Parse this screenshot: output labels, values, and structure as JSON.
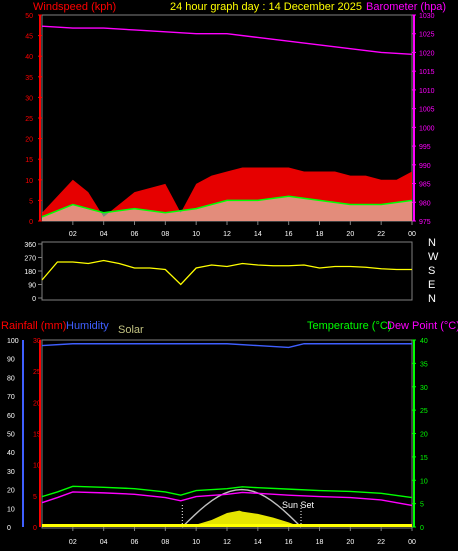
{
  "header": {
    "title": "24 hour graph day : 14 December 2025",
    "left_label": "Windspeed (kph)",
    "right_label": "Barometer (hpa)"
  },
  "colors": {
    "windspeed": "#ff0000",
    "barometer": "#ff00ff",
    "gust": "#ff0000",
    "avg_wind": "#00ff00",
    "direction": "#ffff00",
    "humidity": "#3f5fff",
    "temperature": "#00ff00",
    "dewpoint": "#ff00ff",
    "solar": "#ffff00",
    "solar_curve": "#c0c0c0",
    "title": "#ffff00",
    "axis": "#808080"
  },
  "chart_data": [
    {
      "type": "line",
      "panel": "wind-barometer",
      "x_ticks": [
        "02",
        "04",
        "06",
        "08",
        "10",
        "12",
        "14",
        "16",
        "18",
        "20",
        "22",
        "00"
      ],
      "left_axis": {
        "label": "Windspeed (kph)",
        "ticks": [
          0,
          5,
          10,
          15,
          20,
          25,
          30,
          35,
          40,
          45,
          50
        ],
        "range": [
          0,
          50
        ]
      },
      "right_axis": {
        "label": "Barometer (hpa)",
        "ticks": [
          975,
          980,
          985,
          990,
          995,
          1000,
          1005,
          1010,
          1015,
          1020,
          1025,
          1030
        ],
        "range": [
          975,
          1030
        ]
      },
      "series": [
        {
          "name": "Barometer (hpa)",
          "axis": "right",
          "x": [
            0,
            2,
            4,
            6,
            8,
            10,
            12,
            14,
            16,
            18,
            20,
            22,
            24
          ],
          "values": [
            1027,
            1026.5,
            1026.5,
            1026,
            1025.5,
            1025,
            1025,
            1024,
            1023,
            1022,
            1021,
            1020,
            1019.5
          ]
        },
        {
          "name": "Windspeed gust",
          "axis": "left",
          "x": [
            0,
            1,
            2,
            3,
            4,
            5,
            6,
            7,
            8,
            9,
            10,
            11,
            12,
            13,
            14,
            15,
            16,
            17,
            18,
            19,
            20,
            21,
            22,
            23,
            24
          ],
          "values": [
            2,
            6,
            10,
            7,
            1,
            4,
            7,
            8,
            9,
            2,
            9,
            11,
            12,
            13,
            13,
            13,
            13,
            12,
            12,
            12,
            11,
            11,
            10,
            10,
            12
          ]
        },
        {
          "name": "Windspeed average",
          "axis": "left",
          "x": [
            0,
            2,
            4,
            6,
            8,
            10,
            12,
            14,
            16,
            18,
            20,
            22,
            24
          ],
          "values": [
            1,
            4,
            2,
            3,
            2,
            3,
            5,
            5,
            6,
            5,
            4,
            4,
            5
          ]
        }
      ]
    },
    {
      "type": "line",
      "panel": "wind-direction",
      "x_ticks": [
        "02",
        "04",
        "06",
        "08",
        "10",
        "12",
        "14",
        "16",
        "18",
        "20",
        "22",
        "00"
      ],
      "left_axis": {
        "ticks": [
          0,
          90,
          180,
          270,
          360
        ],
        "range": [
          0,
          360
        ]
      },
      "right_labels": [
        "N",
        "W",
        "S",
        "E",
        "N"
      ],
      "series": [
        {
          "name": "Wind direction",
          "x": [
            0,
            1,
            2,
            3,
            4,
            5,
            6,
            7,
            8,
            9,
            10,
            11,
            12,
            13,
            14,
            15,
            16,
            17,
            18,
            19,
            20,
            21,
            22,
            23,
            24
          ],
          "values": [
            120,
            240,
            240,
            230,
            250,
            230,
            200,
            200,
            190,
            90,
            200,
            220,
            210,
            230,
            220,
            215,
            215,
            220,
            200,
            210,
            210,
            205,
            195,
            190,
            190
          ]
        }
      ]
    },
    {
      "type": "line",
      "panel": "temperature-humidity",
      "labels": {
        "rainfall": "Rainfall (mm)",
        "humidity": "Humidity",
        "solar": "Solar",
        "temperature": "Temperature (°C)",
        "dewpoint": "Dew Point (°C)",
        "sunset": "Sun Set"
      },
      "x_ticks": [
        "02",
        "04",
        "06",
        "08",
        "10",
        "12",
        "14",
        "16",
        "18",
        "20",
        "22",
        "00"
      ],
      "humidity_axis": {
        "ticks": [
          0,
          10,
          20,
          30,
          40,
          50,
          60,
          70,
          80,
          90,
          100
        ],
        "range": [
          0,
          100
        ]
      },
      "rain_axis": {
        "ticks": [
          0,
          5,
          10,
          15,
          20,
          25,
          30
        ],
        "range": [
          0,
          30
        ]
      },
      "temp_axis": {
        "ticks": [
          0,
          5,
          10,
          15,
          20,
          25,
          30,
          35,
          40
        ],
        "range": [
          0,
          40
        ]
      },
      "series": [
        {
          "name": "Humidity",
          "x": [
            0,
            2,
            4,
            6,
            8,
            10,
            12,
            14,
            16,
            17,
            18,
            20,
            22,
            24
          ],
          "values": [
            97,
            98,
            98,
            98,
            98,
            98,
            98,
            97,
            96,
            98,
            98,
            98,
            98,
            98
          ]
        },
        {
          "name": "Temperature (°C)",
          "x": [
            0,
            1,
            2,
            4,
            6,
            8,
            9,
            10,
            12,
            13,
            14,
            16,
            18,
            20,
            22,
            24
          ],
          "values": [
            6.5,
            7.5,
            8.7,
            8.5,
            8.2,
            7.5,
            6.8,
            7.8,
            8.2,
            8.6,
            8.4,
            8.1,
            7.8,
            7.6,
            7.2,
            6.3
          ]
        },
        {
          "name": "Dew Point (°C)",
          "x": [
            0,
            1,
            2,
            4,
            6,
            8,
            9,
            10,
            12,
            13,
            14,
            16,
            18,
            20,
            22,
            24
          ],
          "values": [
            5.2,
            6.3,
            7.5,
            7.3,
            7.0,
            6.3,
            5.6,
            6.5,
            7.0,
            7.4,
            7.2,
            6.8,
            6.5,
            6.3,
            5.8,
            4.6
          ]
        },
        {
          "name": "Solar",
          "x": [
            9.1,
            10,
            11,
            12,
            12.8,
            13,
            14,
            15,
            16,
            16.8
          ],
          "values": [
            0,
            0.5,
            1.5,
            3,
            3.5,
            3.3,
            2.8,
            2,
            1,
            0
          ]
        }
      ],
      "sunrise_hour": 9.1,
      "sunset_hour": 16.8
    }
  ]
}
